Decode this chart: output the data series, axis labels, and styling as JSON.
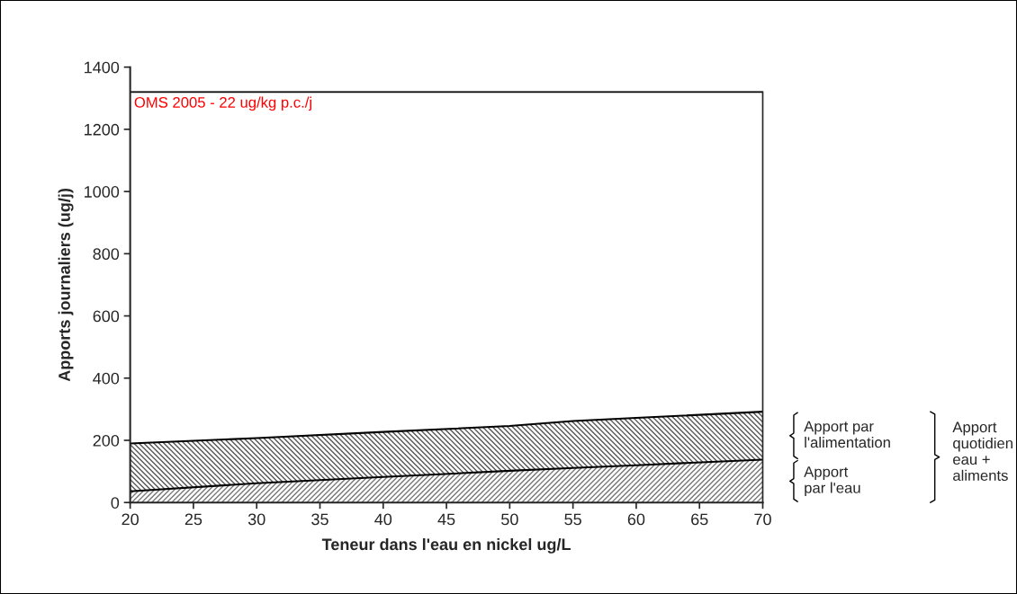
{
  "chart_data": {
    "type": "area",
    "stacked": true,
    "xlabel": "Teneur dans l'eau en nickel ug/L",
    "ylabel": "Apports journaliers (ug/j)",
    "x": [
      20,
      30,
      40,
      50,
      55,
      60,
      70
    ],
    "series": [
      {
        "name": "Apport\npar l'eau",
        "color": "#777777",
        "values": [
          36,
          62,
          82,
          102,
          111,
          120,
          138
        ]
      },
      {
        "name": "Apport par\nl'alimentation",
        "color": "#555555",
        "values": [
          154,
          145,
          145,
          144,
          151,
          152,
          154
        ]
      }
    ],
    "xlim": [
      20,
      70
    ],
    "xticks": [
      20,
      25,
      30,
      35,
      40,
      45,
      50,
      55,
      60,
      65,
      70
    ],
    "ylim": [
      0,
      1400
    ],
    "yticks": [
      0,
      200,
      400,
      600,
      800,
      1000,
      1200,
      1400
    ],
    "ref_lines": [
      {
        "axis": "y",
        "value": 1320,
        "label": "OMS 2005 - 22 ug/kg p.c./j",
        "color": "#000000"
      }
    ],
    "annotations": [
      "Apport\nquotidien\neau +\naliments"
    ],
    "grid": false,
    "legend": false
  }
}
